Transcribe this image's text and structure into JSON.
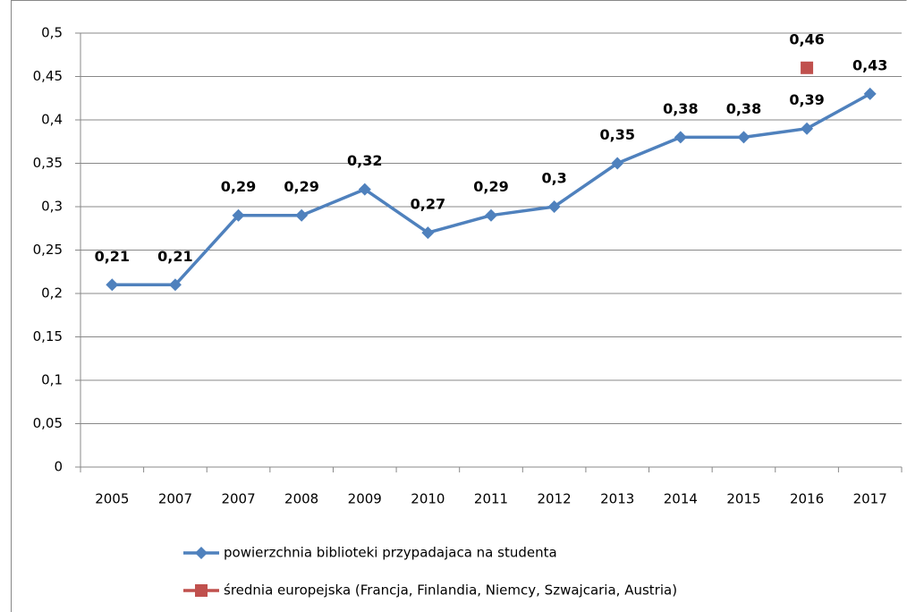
{
  "chart_data": {
    "type": "line",
    "categories": [
      "2005",
      "2007",
      "2007",
      "2008",
      "2009",
      "2010",
      "2011",
      "2012",
      "2013",
      "2014",
      "2015",
      "2016",
      "2017"
    ],
    "series": [
      {
        "name": "powierzchnia biblioteki przypadajaca na studenta",
        "color": "#4f81bd",
        "marker": "diamond",
        "values": [
          0.21,
          0.21,
          0.29,
          0.29,
          0.32,
          0.27,
          0.29,
          0.3,
          0.35,
          0.38,
          0.38,
          0.39,
          0.43
        ],
        "value_labels": [
          "0,21",
          "0,21",
          "0,29",
          "0,29",
          "0,32",
          "0,27",
          "0,29",
          "0,3",
          "0,35",
          "0,38",
          "0,38",
          "0,39",
          "0,43"
        ]
      },
      {
        "name": "średnia europejska (Francja, Finlandia, Niemcy, Szwajcaria, Austria)",
        "color": "#c0504d",
        "marker": "square",
        "values": [
          null,
          null,
          null,
          null,
          null,
          null,
          null,
          null,
          null,
          null,
          null,
          0.46,
          null
        ],
        "value_labels": [
          null,
          null,
          null,
          null,
          null,
          null,
          null,
          null,
          null,
          null,
          null,
          "0,46",
          null
        ]
      }
    ],
    "ylim": [
      0,
      0.5
    ],
    "yticks": [
      0,
      {
        "value": 0.05,
        "label": "0,05"
      },
      {
        "value": 0.1,
        "label": "0,1"
      },
      {
        "value": 0.15,
        "label": "0,15"
      },
      {
        "value": 0.2,
        "label": "0,2"
      },
      {
        "value": 0.25,
        "label": "0,25"
      },
      {
        "value": 0.3,
        "label": "0,3"
      },
      {
        "value": 0.35,
        "label": "0,35"
      },
      {
        "value": 0.4,
        "label": "0,4"
      },
      {
        "value": 0.45,
        "label": "0,45"
      },
      {
        "value": 0.5,
        "label": "0,5"
      }
    ],
    "grid": true,
    "legend": "bottom"
  }
}
